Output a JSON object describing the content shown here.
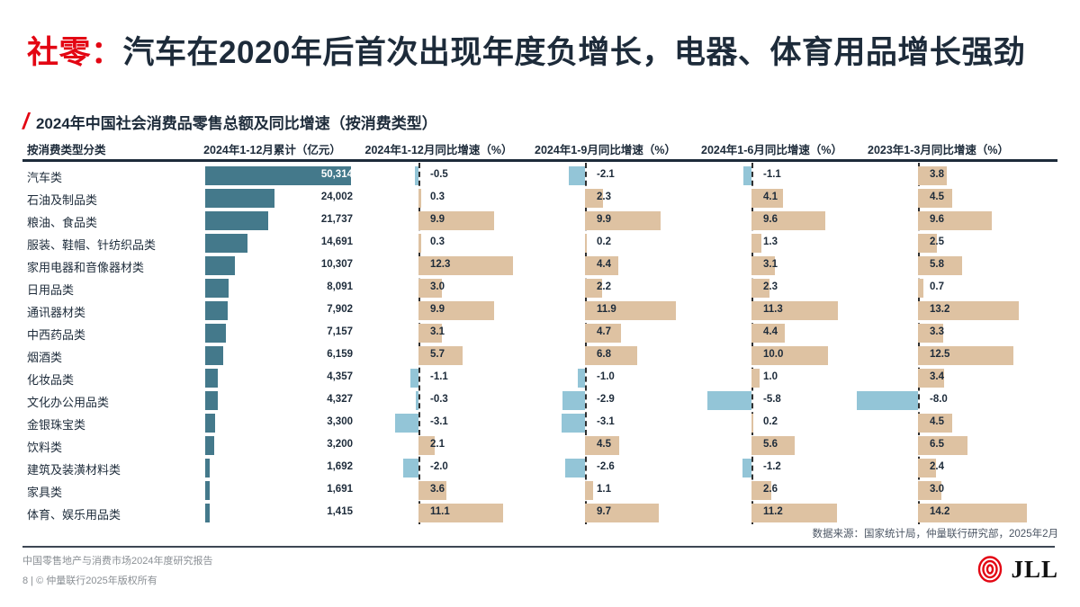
{
  "title": {
    "accent": "社零：",
    "text": "汽车在2020年后首次出现年度负增长，电器、体育用品增长强劲"
  },
  "subtitle": "2024年中国社会消费品零售总额及同比增速（按消费类型）",
  "chart_data": {
    "type": "bar",
    "orientation": "horizontal",
    "title": "2024年中国社会消费品零售总额及同比增速（按消费类型）",
    "category_axis_label": "按消费类型分类",
    "categories": [
      "汽车类",
      "石油及制品类",
      "粮油、食品类",
      "服装、鞋帽、针纺织品类",
      "家用电器和音像器材类",
      "日用品类",
      "通讯器材类",
      "中西药品类",
      "烟酒类",
      "化妆品类",
      "文化办公用品类",
      "金银珠宝类",
      "饮料类",
      "建筑及装潢材料类",
      "家具类",
      "体育、娱乐用品类"
    ],
    "series": [
      {
        "name": "2024年1-12月累计（亿元）",
        "unit": "亿元",
        "values": [
          50314,
          24002,
          21737,
          14691,
          10307,
          8091,
          7902,
          7157,
          6159,
          4357,
          4327,
          3300,
          3200,
          1692,
          1691,
          1415
        ]
      },
      {
        "name": "2024年1-12月同比增速（%）",
        "unit": "%",
        "values": [
          -0.5,
          0.3,
          9.9,
          0.3,
          12.3,
          3.0,
          9.9,
          3.1,
          5.7,
          -1.1,
          -0.3,
          -3.1,
          2.1,
          -2.0,
          3.6,
          11.1
        ]
      },
      {
        "name": "2024年1-9月同比增速（%）",
        "unit": "%",
        "values": [
          -2.1,
          2.3,
          9.9,
          0.2,
          4.4,
          2.2,
          11.9,
          4.7,
          6.8,
          -1.0,
          -2.9,
          -3.1,
          4.5,
          -2.6,
          1.1,
          9.7
        ]
      },
      {
        "name": "2024年1-6月同比增速（%）",
        "unit": "%",
        "values": [
          -1.1,
          4.1,
          9.6,
          1.3,
          3.1,
          2.3,
          11.3,
          4.4,
          10.0,
          1.0,
          -5.8,
          0.2,
          5.6,
          -1.2,
          2.6,
          11.2
        ]
      },
      {
        "name": "2023年1-3月同比增速（%）",
        "unit": "%",
        "values": [
          3.8,
          4.5,
          9.6,
          2.5,
          5.8,
          0.7,
          13.2,
          3.3,
          12.5,
          3.4,
          -8.0,
          4.5,
          6.5,
          2.4,
          3.0,
          14.2
        ]
      }
    ],
    "colors": {
      "amount_bar": "#44798B",
      "growth_positive": "#DEC2A2",
      "growth_negative": "#93C5D7"
    }
  },
  "source_note": "数据来源：国家统计局，仲量联行研究部，2025年2月",
  "footer": {
    "report_line": "中国零售地产与消费市场2024年度研究报告",
    "copyright_line": "8 | © 仲量联行2025年版权所有",
    "logo_text": "JLL"
  },
  "colors": {
    "accent_red": "#E30613",
    "navy": "#1D2B3A"
  }
}
